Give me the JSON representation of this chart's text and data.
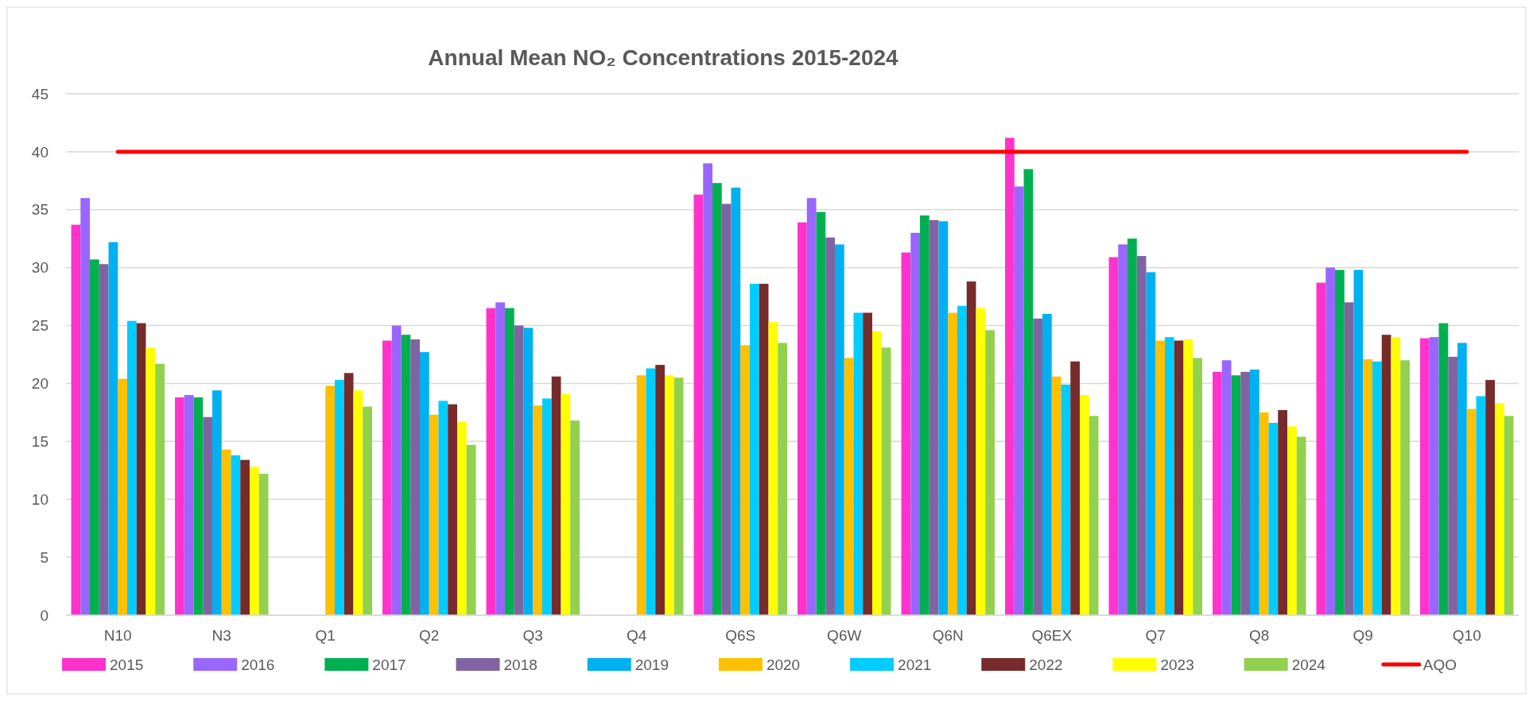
{
  "chart_data": {
    "type": "bar",
    "title": "Annual Mean NO₂ Concentrations 2015-2024",
    "categories": [
      "N10",
      "N3",
      "Q1",
      "Q2",
      "Q3",
      "Q4",
      "Q6S",
      "Q6W",
      "Q6N",
      "Q6EX",
      "Q7",
      "Q8",
      "Q9",
      "Q10"
    ],
    "series": [
      {
        "name": "2015",
        "color": "#ff33cc",
        "values": [
          33.7,
          18.8,
          null,
          23.7,
          26.5,
          null,
          36.3,
          33.9,
          31.3,
          41.2,
          30.9,
          21.0,
          28.7,
          23.9
        ]
      },
      {
        "name": "2016",
        "color": "#9966ff",
        "values": [
          36.0,
          19.0,
          null,
          25.0,
          27.0,
          null,
          39.0,
          36.0,
          33.0,
          37.0,
          32.0,
          22.0,
          30.0,
          24.0
        ]
      },
      {
        "name": "2017",
        "color": "#00b050",
        "values": [
          30.7,
          18.8,
          null,
          24.2,
          26.5,
          null,
          37.3,
          34.8,
          34.5,
          38.5,
          32.5,
          20.7,
          29.8,
          25.2
        ]
      },
      {
        "name": "2018",
        "color": "#8064a2",
        "values": [
          30.3,
          17.1,
          null,
          23.8,
          25.0,
          null,
          35.5,
          32.6,
          34.1,
          25.6,
          31.0,
          21.0,
          27.0,
          22.3
        ]
      },
      {
        "name": "2019",
        "color": "#00b0f0",
        "values": [
          32.2,
          19.4,
          null,
          22.7,
          24.8,
          null,
          36.9,
          32.0,
          34.0,
          26.0,
          29.6,
          21.2,
          29.8,
          23.5
        ]
      },
      {
        "name": "2020",
        "color": "#ffc000",
        "values": [
          20.4,
          14.3,
          19.8,
          17.3,
          18.1,
          20.7,
          23.3,
          22.2,
          26.1,
          20.6,
          23.7,
          17.5,
          22.1,
          17.8
        ]
      },
      {
        "name": "2021",
        "color": "#00ccff",
        "values": [
          25.4,
          13.8,
          20.3,
          18.5,
          18.7,
          21.3,
          28.6,
          26.1,
          26.7,
          19.9,
          24.0,
          16.6,
          21.9,
          18.9
        ]
      },
      {
        "name": "2022",
        "color": "#772b2b",
        "values": [
          25.2,
          13.4,
          20.9,
          18.2,
          20.6,
          21.6,
          28.6,
          26.1,
          28.8,
          21.9,
          23.7,
          17.7,
          24.2,
          20.3
        ]
      },
      {
        "name": "2023",
        "color": "#ffff00",
        "values": [
          23.1,
          12.8,
          19.4,
          16.7,
          19.1,
          20.7,
          25.3,
          24.5,
          26.5,
          19.0,
          23.8,
          16.3,
          24.0,
          18.3
        ]
      },
      {
        "name": "2024",
        "color": "#92d050",
        "values": [
          21.7,
          12.2,
          18.0,
          14.7,
          16.8,
          20.5,
          23.5,
          23.1,
          24.6,
          17.2,
          22.2,
          15.4,
          22.0,
          17.2
        ]
      }
    ],
    "ref_lines": [
      {
        "axis": "y",
        "value": 40,
        "label": "AQO",
        "color": "#ff0000"
      }
    ],
    "ylim": [
      0,
      45
    ],
    "yticks": [
      0,
      5,
      10,
      15,
      20,
      25,
      30,
      35,
      40,
      45
    ],
    "grid": "y",
    "legend": "bottom"
  }
}
